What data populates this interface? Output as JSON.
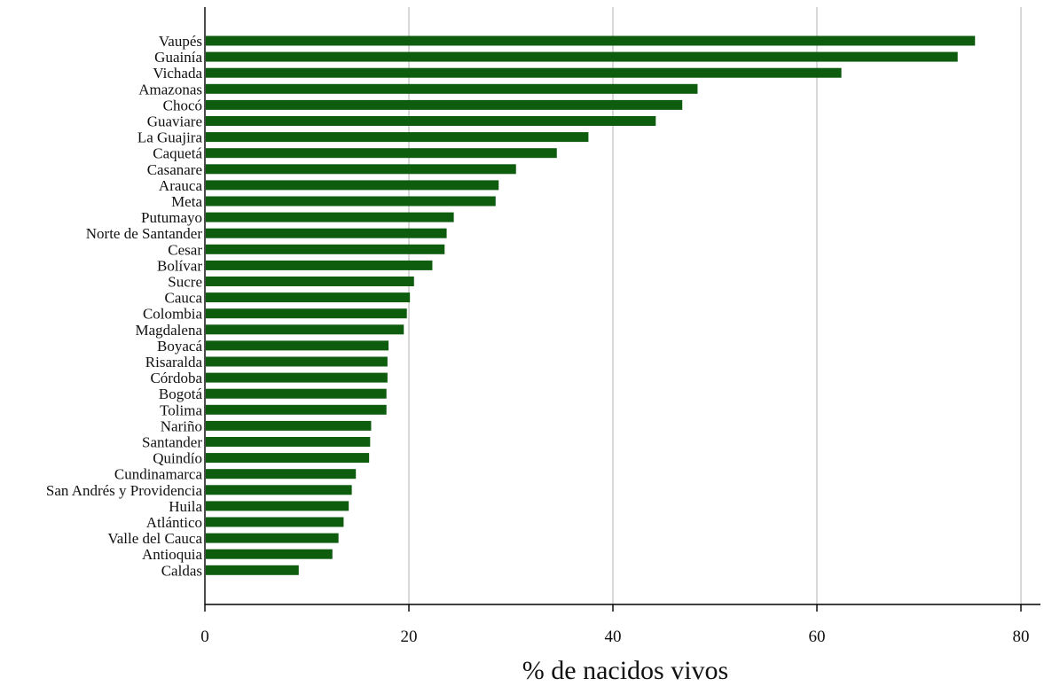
{
  "chart_data": {
    "type": "bar",
    "orientation": "horizontal",
    "xlabel": "% de nacidos vivos",
    "ylabel": "",
    "xlim": [
      0,
      82
    ],
    "xticks": [
      0,
      20,
      40,
      60,
      80
    ],
    "grid": "vertical",
    "bar_color": "#0e5c0e",
    "categories": [
      "Vaupés",
      "Guainía",
      "Vichada",
      "Amazonas",
      "Chocó",
      "Guaviare",
      "La Guajira",
      "Caquetá",
      "Casanare",
      "Arauca",
      "Meta",
      "Putumayo",
      "Norte de Santander",
      "Cesar",
      "Bolívar",
      "Sucre",
      "Cauca",
      "Colombia",
      "Magdalena",
      "Boyacá",
      "Risaralda",
      "Córdoba",
      "Bogotá",
      "Tolima",
      "Nariño",
      "Santander",
      "Quindío",
      "Cundinamarca",
      "San Andrés y Providencia",
      "Huila",
      "Atlántico",
      "Valle del Cauca",
      "Antioquia",
      "Caldas"
    ],
    "values": [
      75.5,
      73.8,
      62.4,
      48.3,
      46.8,
      44.2,
      37.6,
      34.5,
      30.5,
      28.8,
      28.5,
      24.4,
      23.7,
      23.5,
      22.3,
      20.5,
      20.1,
      19.8,
      19.5,
      18.0,
      17.9,
      17.9,
      17.8,
      17.8,
      16.3,
      16.2,
      16.1,
      14.8,
      14.4,
      14.1,
      13.6,
      13.1,
      12.5,
      9.2
    ]
  }
}
